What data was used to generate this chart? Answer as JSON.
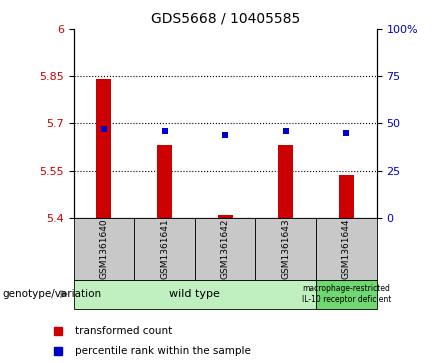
{
  "title": "GDS5668 / 10405585",
  "samples": [
    "GSM1361640",
    "GSM1361641",
    "GSM1361642",
    "GSM1361643",
    "GSM1361644"
  ],
  "transformed_counts": [
    5.84,
    5.63,
    5.41,
    5.63,
    5.535
  ],
  "percentile_ranks_pct": [
    47,
    46,
    44,
    46,
    45
  ],
  "ylim_left": [
    5.4,
    6.0
  ],
  "ylim_right": [
    0,
    100
  ],
  "yticks_left": [
    5.4,
    5.55,
    5.7,
    5.85,
    6.0
  ],
  "yticks_right": [
    0,
    25,
    50,
    75,
    100
  ],
  "ytick_labels_left": [
    "5.4",
    "5.55",
    "5.7",
    "5.85",
    "6"
  ],
  "ytick_labels_right": [
    "0",
    "25",
    "50",
    "75",
    "100%"
  ],
  "hlines": [
    5.55,
    5.7,
    5.85
  ],
  "bar_color": "#cc0000",
  "dot_color": "#0000cc",
  "bar_width": 0.25,
  "bar_base": 5.4,
  "plot_bg": "#ffffff",
  "sample_bg": "#c8c8c8",
  "genotype_bg_wt": "#c0f0c0",
  "genotype_bg_mut": "#70d870",
  "genotype_wt": "wild type",
  "genotype_mut": "macrophage-restricted\nIL-10 receptor deficient",
  "n_wt": 4,
  "legend_red": "transformed count",
  "legend_blue": "percentile rank within the sample",
  "genotype_label": "genotype/variation"
}
